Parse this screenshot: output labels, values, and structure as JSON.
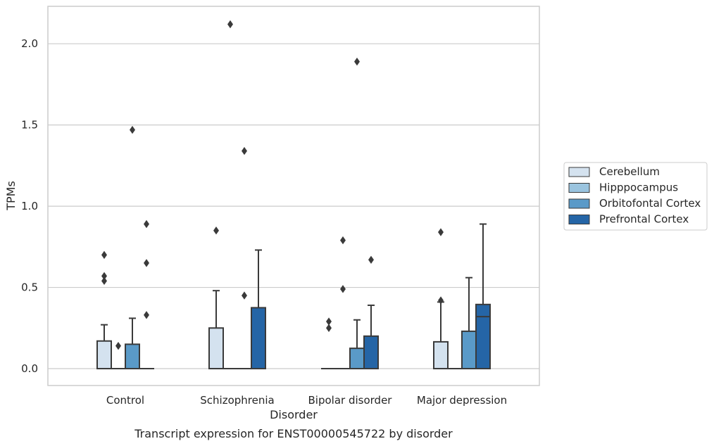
{
  "chart_data": {
    "type": "box",
    "caption": "Transcript expression for ENST00000545722 by disorder",
    "xlabel": "Disorder",
    "ylabel": "TPMs",
    "ylim": [
      -0.1,
      2.23
    ],
    "yticks": [
      0.0,
      0.5,
      1.0,
      1.5,
      2.0
    ],
    "ytick_labels": [
      "0.0",
      "0.5",
      "1.0",
      "1.5",
      "2.0"
    ],
    "grid": "horizontal",
    "legend_position": "right",
    "categories": [
      "Control",
      "Schizophrenia",
      "Bipolar disorder",
      "Major depression"
    ],
    "series": [
      {
        "name": "Cerebellum",
        "color": "#d4e2ef",
        "boxes": [
          {
            "min": 0,
            "q1": 0,
            "median": 0,
            "q3": 0.17,
            "max": 0.27,
            "outliers": [
              0.54,
              0.57,
              0.7
            ]
          },
          {
            "min": 0,
            "q1": 0,
            "median": 0,
            "q3": 0.25,
            "max": 0.48,
            "outliers": [
              0.85
            ]
          },
          {
            "min": 0,
            "q1": 0,
            "median": 0,
            "q3": 0,
            "max": 0,
            "outliers": [
              0.25,
              0.29
            ]
          },
          {
            "min": 0,
            "q1": 0,
            "median": 0,
            "q3": 0.165,
            "max": 0.41,
            "outliers": [
              0.42,
              0.84
            ]
          }
        ]
      },
      {
        "name": "Hipppocampus",
        "color": "#9ac4df",
        "boxes": [
          {
            "min": 0,
            "q1": 0,
            "median": 0,
            "q3": 0,
            "max": 0,
            "outliers": [
              0.14
            ]
          },
          {
            "min": 0,
            "q1": 0,
            "median": 0,
            "q3": 0,
            "max": 0,
            "outliers": [
              2.12
            ]
          },
          {
            "min": 0,
            "q1": 0,
            "median": 0,
            "q3": 0,
            "max": 0,
            "outliers": [
              0.49,
              0.79
            ]
          },
          {
            "min": 0,
            "q1": 0,
            "median": 0,
            "q3": 0,
            "max": 0,
            "outliers": []
          }
        ]
      },
      {
        "name": "Orbitofontal Cortex",
        "color": "#5a9ac8",
        "boxes": [
          {
            "min": 0,
            "q1": 0,
            "median": 0,
            "q3": 0.15,
            "max": 0.31,
            "outliers": [
              1.47
            ]
          },
          {
            "min": 0,
            "q1": 0,
            "median": 0,
            "q3": 0,
            "max": 0,
            "outliers": [
              0.45,
              1.34
            ]
          },
          {
            "min": 0,
            "q1": 0,
            "median": 0,
            "q3": 0.125,
            "max": 0.3,
            "outliers": [
              1.89
            ]
          },
          {
            "min": 0,
            "q1": 0,
            "median": 0,
            "q3": 0.23,
            "max": 0.56,
            "outliers": []
          }
        ]
      },
      {
        "name": "Prefrontal Cortex",
        "color": "#2565a6",
        "boxes": [
          {
            "min": 0,
            "q1": 0,
            "median": 0,
            "q3": 0,
            "max": 0,
            "outliers": [
              0.33,
              0.65,
              0.89
            ]
          },
          {
            "min": 0,
            "q1": 0,
            "median": 0,
            "q3": 0.375,
            "max": 0.73,
            "outliers": []
          },
          {
            "min": 0,
            "q1": 0,
            "median": 0,
            "q3": 0.2,
            "max": 0.39,
            "outliers": [
              0.67
            ]
          },
          {
            "min": 0,
            "q1": 0,
            "median": 0.32,
            "q3": 0.395,
            "max": 0.89,
            "outliers": []
          }
        ]
      }
    ]
  }
}
